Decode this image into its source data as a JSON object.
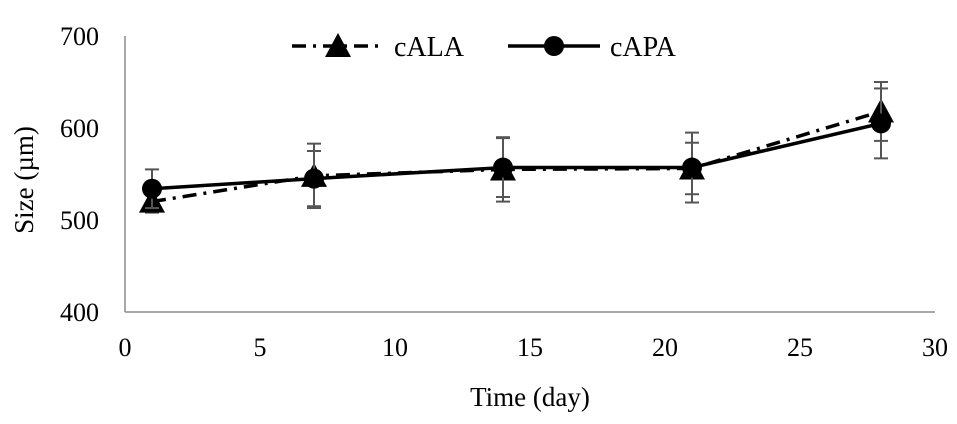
{
  "chart_data": {
    "type": "line",
    "title": "",
    "xlabel": "Time (day)",
    "ylabel": "Size (µm)",
    "xlim": [
      0,
      30
    ],
    "ylim": [
      400,
      700
    ],
    "xticks": [
      0,
      5,
      10,
      15,
      20,
      25,
      30
    ],
    "yticks": [
      400,
      500,
      600,
      700
    ],
    "x_tick_labels": [
      "0",
      "5",
      "10",
      "15",
      "20",
      "25",
      "30"
    ],
    "y_tick_labels": [
      "400",
      "500",
      "600",
      "700"
    ],
    "grid": false,
    "legend_position": "top-center",
    "series": [
      {
        "name": "cALA",
        "style": "dash-dot",
        "marker": "triangle",
        "color": "#000000",
        "x": [
          1,
          7,
          14,
          21,
          28
        ],
        "y": [
          520,
          548,
          555,
          556,
          618
        ],
        "error": [
          12,
          35,
          35,
          28,
          32
        ]
      },
      {
        "name": "cAPA",
        "style": "solid",
        "marker": "circle",
        "color": "#000000",
        "x": [
          1,
          7,
          14,
          21,
          28
        ],
        "y": [
          534,
          545,
          557,
          557,
          605
        ],
        "error": [
          21,
          30,
          32,
          38,
          38
        ]
      }
    ]
  }
}
